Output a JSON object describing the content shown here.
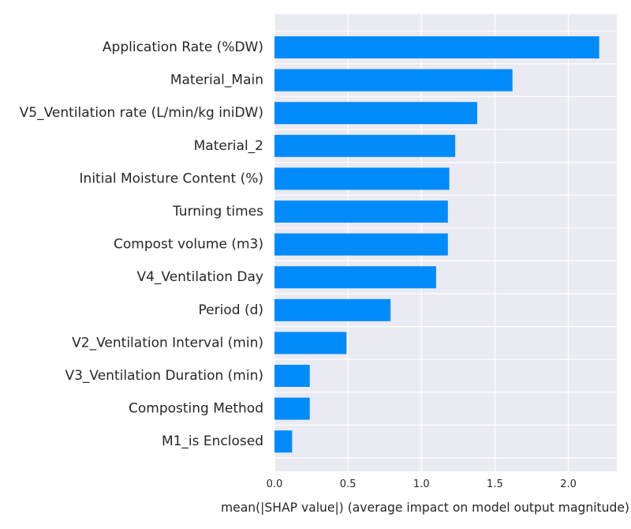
{
  "chart_data": {
    "type": "bar",
    "orientation": "horizontal",
    "categories": [
      "Application Rate (%DW)",
      "Material_Main",
      "V5_Ventilation rate (L/min/kg iniDW)",
      "Material_2",
      "Initial Moisture Content (%)",
      "Turning times",
      "Compost volume (m3)",
      "V4_Ventilation Day",
      "Period (d)",
      "V2_Ventilation Interval (min)",
      "V3_Ventilation Duration (min)",
      "Composting Method",
      "M1_is Enclosed"
    ],
    "values": [
      2.21,
      1.62,
      1.38,
      1.23,
      1.19,
      1.18,
      1.18,
      1.1,
      0.79,
      0.49,
      0.24,
      0.24,
      0.12
    ],
    "xlabel": "mean(|SHAP value|) (average impact on model output magnitude)",
    "ylabel": "",
    "title": "",
    "xlim": [
      0,
      2.33
    ],
    "xticks": [
      "0.0",
      "0.5",
      "1.0",
      "1.5",
      "2.0"
    ],
    "grid": true,
    "colors": {
      "bar": "#008bfb",
      "plot_background": "#eaeaf2",
      "grid": "#ffffff",
      "text": "#262626"
    }
  }
}
